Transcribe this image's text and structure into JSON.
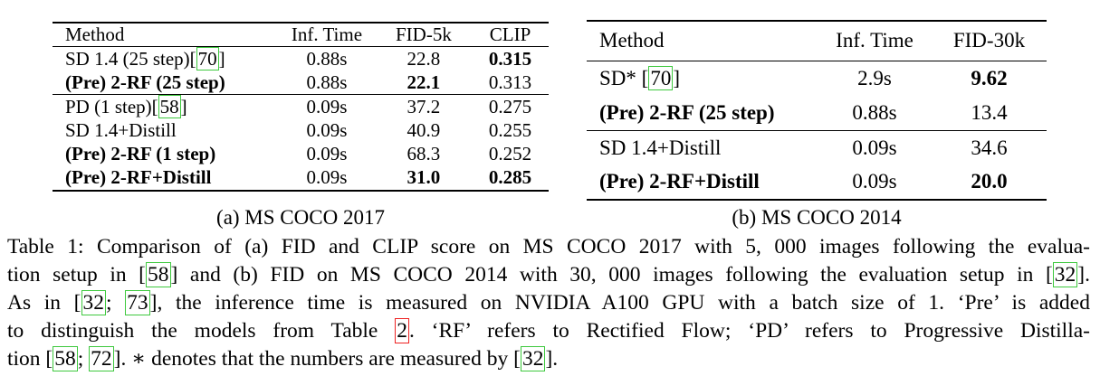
{
  "table_a": {
    "headers": [
      "Method",
      "Inf. Time",
      "FID-5k",
      "CLIP"
    ],
    "rows": [
      {
        "method": "SD 1.4 (25 step)",
        "ref": "70",
        "method_bold": false,
        "time": "0.88s",
        "fid": "22.8",
        "fid_bold": false,
        "clip": "0.315",
        "clip_bold": true
      },
      {
        "method": "(Pre) 2-RF (25 step)",
        "ref": "",
        "method_bold": true,
        "time": "0.88s",
        "fid": "22.1",
        "fid_bold": true,
        "clip": "0.313",
        "clip_bold": false
      },
      {
        "method": "PD (1 step)",
        "ref": "58",
        "method_bold": false,
        "time": "0.09s",
        "fid": "37.2",
        "fid_bold": false,
        "clip": "0.275",
        "clip_bold": false
      },
      {
        "method": "SD 1.4+Distill",
        "ref": "",
        "method_bold": false,
        "time": "0.09s",
        "fid": "40.9",
        "fid_bold": false,
        "clip": "0.255",
        "clip_bold": false
      },
      {
        "method": "(Pre) 2-RF (1 step)",
        "ref": "",
        "method_bold": true,
        "time": "0.09s",
        "fid": "68.3",
        "fid_bold": false,
        "clip": "0.252",
        "clip_bold": false
      },
      {
        "method": "(Pre) 2-RF+Distill",
        "ref": "",
        "method_bold": true,
        "time": "0.09s",
        "fid": "31.0",
        "fid_bold": true,
        "clip": "0.285",
        "clip_bold": true
      }
    ],
    "subcaption": "(a) MS COCO 2017"
  },
  "table_b": {
    "headers": [
      "Method",
      "Inf. Time",
      "FID-30k"
    ],
    "rows": [
      {
        "method": "SD* [",
        "ref": "70",
        "method_suffix": "]",
        "method_bold": false,
        "time": "2.9s",
        "fid": "9.62",
        "fid_bold": true
      },
      {
        "method": "(Pre) 2-RF (25 step)",
        "ref": "",
        "method_suffix": "",
        "method_bold": true,
        "time": "0.88s",
        "fid": "13.4",
        "fid_bold": false
      },
      {
        "method": "SD 1.4+Distill",
        "ref": "",
        "method_suffix": "",
        "method_bold": false,
        "time": "0.09s",
        "fid": "34.6",
        "fid_bold": false
      },
      {
        "method": "(Pre) 2-RF+Distill",
        "ref": "",
        "method_suffix": "",
        "method_bold": true,
        "time": "0.09s",
        "fid": "20.0",
        "fid_bold": true
      }
    ],
    "subcaption": "(b) MS COCO 2014"
  },
  "caption": {
    "l1_a": "Table 1: Comparison of (a) FID and CLIP score on MS COCO 2017 with 5, 000 images following the evalua-",
    "l2_a": "tion setup in [",
    "l2_ref1": "58",
    "l2_b": "] and (b) FID on MS COCO 2014 with 30, 000 images following the evaluation setup in [",
    "l2_ref2": "32",
    "l2_c": "].",
    "l3_a": "As in [",
    "l3_ref1": "32",
    "l3_b": "; ",
    "l3_ref2": "73",
    "l3_c": "], the inference time is measured on NVIDIA A100 GPU with a batch size of 1. ‘Pre’ is added",
    "l4_a": "to distinguish the models from Table ",
    "l4_ref": "2",
    "l4_b": ". ‘RF’ refers to Rectified Flow; ‘PD’ refers to Progressive Distilla-",
    "l5_a": "tion [",
    "l5_ref1": "58",
    "l5_b": "; ",
    "l5_ref2": "72",
    "l5_c": "]. ∗ denotes that the numbers are measured by [",
    "l5_ref3": "32",
    "l5_d": "]."
  },
  "colors": {
    "link_green": "#3ec93e",
    "link_red": "#ee2222"
  }
}
